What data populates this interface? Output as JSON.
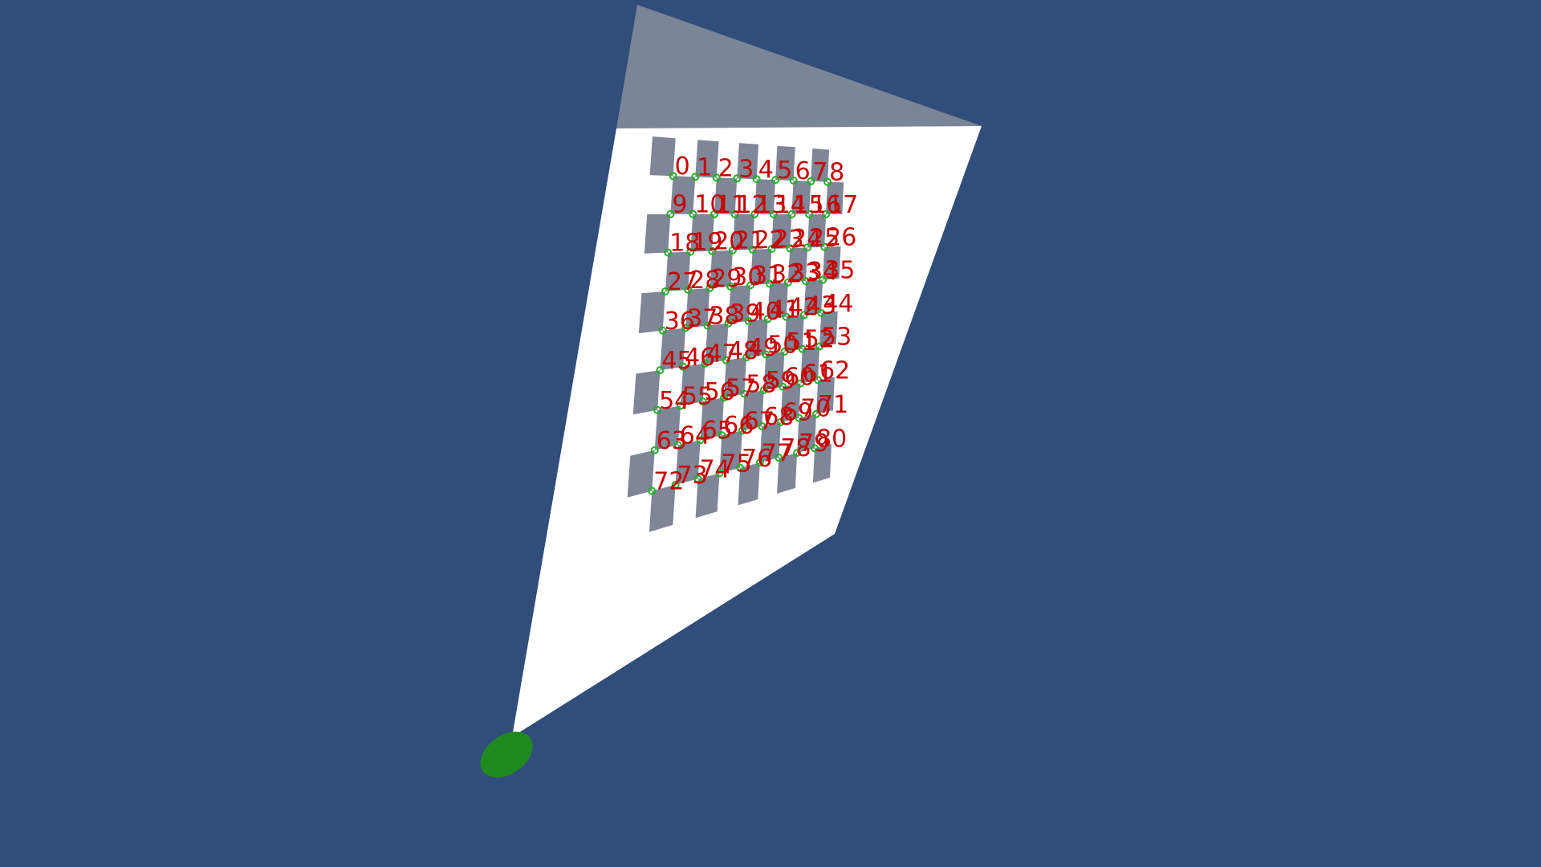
{
  "scene": {
    "background_color": "#314d79",
    "board_paper_color": "#ffffff",
    "board_top_strip_color": "#7a8598",
    "checker_square_color": "#7e8698",
    "corner_marker_color": "#1fb31f",
    "corner_label_color": "#c90000",
    "base_marker_color": "#1f8a1f"
  },
  "checkerboard": {
    "rows": 10,
    "cols": 10,
    "inner_corner_rows": 9,
    "inner_corner_cols": 9
  },
  "corner_labels": [
    "0",
    "1",
    "2",
    "3",
    "4",
    "5",
    "6",
    "7",
    "8",
    "9",
    "10",
    "11",
    "12",
    "13",
    "14",
    "15",
    "16",
    "17",
    "18",
    "19",
    "20",
    "21",
    "22",
    "23",
    "24",
    "25",
    "26",
    "27",
    "28",
    "29",
    "30",
    "31",
    "32",
    "33",
    "34",
    "35",
    "36",
    "37",
    "38",
    "39",
    "40",
    "41",
    "42",
    "43",
    "44",
    "45",
    "46",
    "47",
    "48",
    "49",
    "50",
    "51",
    "52",
    "53",
    "54",
    "55",
    "56",
    "57",
    "58",
    "59",
    "60",
    "61",
    "62",
    "63",
    "64",
    "65",
    "66",
    "67",
    "68",
    "69",
    "70",
    "71",
    "72",
    "73",
    "74",
    "75",
    "76",
    "77",
    "78",
    "79",
    "80"
  ]
}
